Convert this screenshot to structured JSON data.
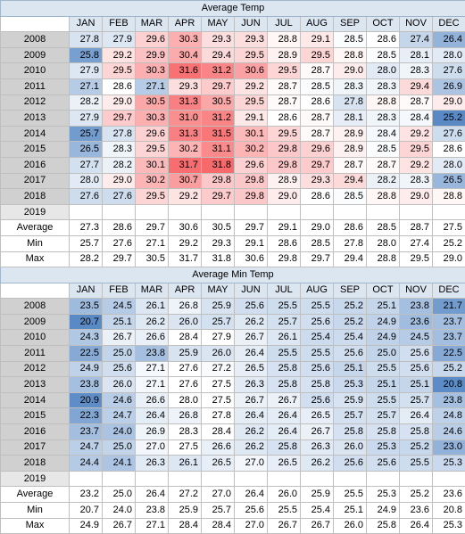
{
  "months": [
    "JAN",
    "FEB",
    "MAR",
    "APR",
    "MAY",
    "JUN",
    "JUL",
    "AUG",
    "SEP",
    "OCT",
    "NOV",
    "DEC"
  ],
  "sections": [
    {
      "title": "Average Temp",
      "scheme": "blue-red",
      "scale": [
        25.2,
        31.8
      ],
      "mid": 28.6,
      "rows": [
        {
          "year": "2008",
          "values": [
            "27.8",
            "27.9",
            "29.6",
            "30.3",
            "29.3",
            "29.3",
            "28.8",
            "29.1",
            "28.5",
            "28.6",
            "27.4",
            "26.4"
          ]
        },
        {
          "year": "2009",
          "values": [
            "25.8",
            "29.2",
            "29.9",
            "30.4",
            "29.4",
            "29.5",
            "28.9",
            "29.5",
            "28.8",
            "28.5",
            "28.1",
            "28.0"
          ]
        },
        {
          "year": "2010",
          "values": [
            "27.9",
            "29.5",
            "30.3",
            "31.6",
            "31.2",
            "30.6",
            "29.5",
            "28.7",
            "29.0",
            "28.0",
            "28.3",
            "27.6"
          ]
        },
        {
          "year": "2011",
          "values": [
            "27.1",
            "28.6",
            "27.1",
            "29.3",
            "29.7",
            "29.2",
            "28.7",
            "28.5",
            "28.3",
            "28.3",
            "29.4",
            "26.9"
          ]
        },
        {
          "year": "2012",
          "values": [
            "28.2",
            "29.0",
            "30.5",
            "31.3",
            "30.5",
            "29.5",
            "28.7",
            "28.6",
            "27.8",
            "28.8",
            "28.7",
            "29.0"
          ]
        },
        {
          "year": "2013",
          "values": [
            "27.9",
            "29.7",
            "30.3",
            "31.0",
            "31.2",
            "29.1",
            "28.6",
            "28.7",
            "28.1",
            "28.3",
            "28.4",
            "25.2"
          ]
        },
        {
          "year": "2014",
          "values": [
            "25.7",
            "27.8",
            "29.6",
            "31.3",
            "31.5",
            "30.1",
            "29.5",
            "28.7",
            "28.9",
            "28.4",
            "29.2",
            "27.6"
          ]
        },
        {
          "year": "2015",
          "values": [
            "26.5",
            "28.3",
            "29.5",
            "30.2",
            "31.1",
            "30.2",
            "29.8",
            "29.6",
            "28.9",
            "28.5",
            "29.5",
            "28.6"
          ]
        },
        {
          "year": "2016",
          "values": [
            "27.7",
            "28.2",
            "30.1",
            "31.7",
            "31.8",
            "29.6",
            "29.8",
            "29.7",
            "28.7",
            "28.7",
            "29.2",
            "28.0"
          ]
        },
        {
          "year": "2017",
          "values": [
            "28.0",
            "29.0",
            "30.2",
            "30.7",
            "29.8",
            "29.8",
            "28.9",
            "29.3",
            "29.4",
            "28.2",
            "28.3",
            "26.5"
          ]
        },
        {
          "year": "2018",
          "values": [
            "27.6",
            "27.6",
            "29.5",
            "29.2",
            "29.7",
            "29.8",
            "29.0",
            "28.6",
            "28.5",
            "28.8",
            "29.0",
            "28.8"
          ]
        },
        {
          "year": "2019",
          "values": [
            "",
            "",
            "",
            "",
            "",
            "",
            "",
            "",
            "",
            "",
            "",
            ""
          ]
        }
      ],
      "summary": [
        {
          "label": "Average",
          "values": [
            "27.3",
            "28.6",
            "29.7",
            "30.6",
            "30.5",
            "29.7",
            "29.1",
            "29.0",
            "28.6",
            "28.5",
            "28.7",
            "27.5"
          ]
        },
        {
          "label": "Min",
          "values": [
            "25.7",
            "27.6",
            "27.1",
            "29.2",
            "29.3",
            "29.1",
            "28.6",
            "28.5",
            "27.8",
            "28.0",
            "27.4",
            "25.2"
          ]
        },
        {
          "label": "Max",
          "values": [
            "28.2",
            "29.7",
            "30.5",
            "31.7",
            "31.8",
            "30.6",
            "29.8",
            "29.7",
            "29.4",
            "28.8",
            "29.5",
            "29.0"
          ]
        }
      ]
    },
    {
      "title": "Average  Min Temp",
      "scheme": "blue",
      "scale": [
        20.7,
        27.5
      ],
      "rows": [
        {
          "year": "2008",
          "values": [
            "23.5",
            "24.5",
            "26.1",
            "26.8",
            "25.9",
            "25.6",
            "25.5",
            "25.5",
            "25.2",
            "25.1",
            "23.8",
            "21.7"
          ]
        },
        {
          "year": "2009",
          "values": [
            "20.7",
            "25.1",
            "26.2",
            "26.0",
            "25.7",
            "26.2",
            "25.7",
            "25.6",
            "25.2",
            "24.9",
            "23.6",
            "23.7"
          ]
        },
        {
          "year": "2010",
          "values": [
            "24.3",
            "26.7",
            "26.6",
            "28.4",
            "27.9",
            "26.7",
            "26.1",
            "25.4",
            "25.4",
            "24.9",
            "24.5",
            "23.7"
          ]
        },
        {
          "year": "2011",
          "values": [
            "22.5",
            "25.0",
            "23.8",
            "25.9",
            "26.0",
            "26.4",
            "25.5",
            "25.5",
            "25.6",
            "25.0",
            "25.6",
            "22.5"
          ]
        },
        {
          "year": "2012",
          "values": [
            "24.9",
            "25.6",
            "27.1",
            "27.6",
            "27.2",
            "26.5",
            "25.8",
            "25.6",
            "25.1",
            "25.5",
            "25.6",
            "25.2"
          ]
        },
        {
          "year": "2013",
          "values": [
            "23.8",
            "26.0",
            "27.1",
            "27.6",
            "27.5",
            "26.3",
            "25.8",
            "25.8",
            "25.3",
            "25.1",
            "25.1",
            "20.8"
          ]
        },
        {
          "year": "2014",
          "values": [
            "20.9",
            "24.6",
            "26.6",
            "28.0",
            "27.5",
            "26.7",
            "26.7",
            "25.6",
            "25.9",
            "25.5",
            "25.7",
            "23.8"
          ]
        },
        {
          "year": "2015",
          "values": [
            "22.3",
            "24.7",
            "26.4",
            "26.8",
            "27.8",
            "26.4",
            "26.4",
            "26.5",
            "25.7",
            "25.7",
            "26.4",
            "24.8"
          ]
        },
        {
          "year": "2016",
          "values": [
            "23.7",
            "24.0",
            "26.9",
            "28.3",
            "28.4",
            "26.2",
            "26.4",
            "26.7",
            "25.8",
            "25.8",
            "25.8",
            "24.6"
          ]
        },
        {
          "year": "2017",
          "values": [
            "24.7",
            "25.0",
            "27.0",
            "27.5",
            "26.6",
            "26.2",
            "25.8",
            "26.3",
            "26.0",
            "25.3",
            "25.2",
            "23.0"
          ]
        },
        {
          "year": "2018",
          "values": [
            "24.4",
            "24.1",
            "26.3",
            "26.1",
            "26.5",
            "27.0",
            "26.5",
            "26.2",
            "25.6",
            "25.6",
            "25.5",
            "25.3"
          ]
        },
        {
          "year": "2019",
          "values": [
            "",
            "",
            "",
            "",
            "",
            "",
            "",
            "",
            "",
            "",
            "",
            ""
          ]
        }
      ],
      "summary": [
        {
          "label": "Average",
          "values": [
            "23.2",
            "25.0",
            "26.4",
            "27.2",
            "27.0",
            "26.4",
            "26.0",
            "25.9",
            "25.5",
            "25.3",
            "25.2",
            "23.6"
          ]
        },
        {
          "label": "Min",
          "values": [
            "20.7",
            "24.0",
            "23.8",
            "25.9",
            "25.7",
            "25.6",
            "25.5",
            "25.4",
            "25.1",
            "24.9",
            "23.6",
            "20.8"
          ]
        },
        {
          "label": "Max",
          "values": [
            "24.9",
            "26.7",
            "27.1",
            "28.4",
            "28.4",
            "27.0",
            "26.7",
            "26.7",
            "26.0",
            "25.8",
            "26.4",
            "25.3"
          ]
        }
      ]
    }
  ]
}
